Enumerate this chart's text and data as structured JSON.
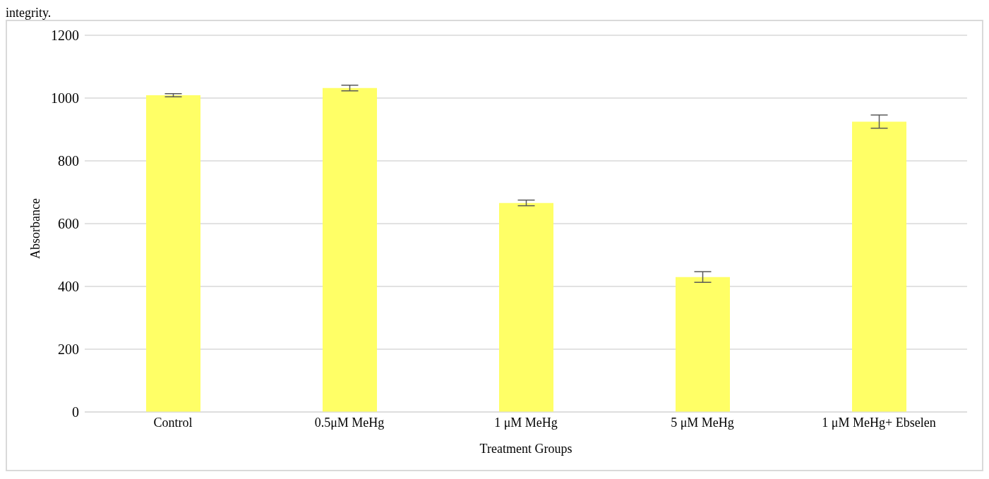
{
  "chart_data": {
    "type": "bar",
    "xlabel": "Treatment Groups",
    "ylabel": "Absorbance",
    "annotations": [
      "integrity."
    ],
    "categories": [
      "Control",
      "0.5μM MeHg",
      "1 μM MeHg",
      "5 μM MeHg",
      "1 μM MeHg+ Ebselen"
    ],
    "values": [
      1009,
      1032,
      666,
      430,
      925
    ],
    "errors": [
      5,
      9,
      9,
      17,
      21
    ],
    "color": "#ffff66",
    "ylim": [
      0,
      1200
    ],
    "yticks": [
      0,
      200,
      400,
      600,
      800,
      1000,
      1200
    ],
    "grid": "y"
  }
}
